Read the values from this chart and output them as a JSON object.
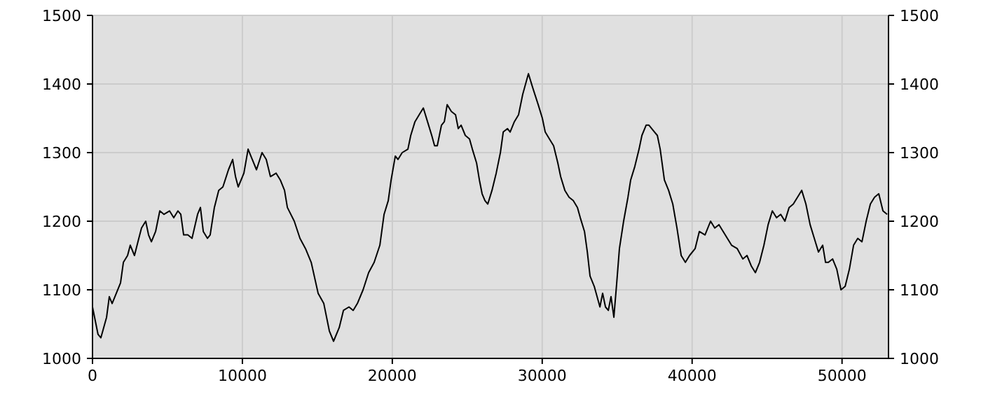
{
  "chart_data": {
    "type": "line",
    "xlim": [
      0,
      53100
    ],
    "xticks": [
      0,
      10000,
      20000,
      30000,
      40000,
      50000
    ],
    "ylim": [
      1000,
      1500
    ],
    "yticks": [
      1000,
      1100,
      1200,
      1300,
      1400,
      1500
    ],
    "y2lim": [
      1000,
      1500
    ],
    "y2ticks": [
      1000,
      1100,
      1200,
      1300,
      1400,
      1500
    ],
    "grid": true,
    "x": [
      0,
      370,
      560,
      940,
      1120,
      1310,
      1590,
      1870,
      2060,
      2340,
      2520,
      2800,
      3090,
      3270,
      3550,
      3740,
      3930,
      4210,
      4490,
      4770,
      5140,
      5420,
      5700,
      5890,
      6080,
      6360,
      6640,
      7010,
      7200,
      7390,
      7670,
      7850,
      8130,
      8420,
      8700,
      9070,
      9350,
      9540,
      9720,
      10100,
      10380,
      10660,
      10940,
      11310,
      11590,
      11870,
      12250,
      12530,
      12810,
      13000,
      13460,
      13840,
      14210,
      14590,
      15050,
      15430,
      15800,
      16080,
      16460,
      16740,
      17110,
      17390,
      17670,
      18050,
      18420,
      18790,
      19170,
      19450,
      19730,
      19920,
      20200,
      20380,
      20660,
      21040,
      21230,
      21510,
      21790,
      22070,
      22350,
      22630,
      22820,
      23000,
      23280,
      23470,
      23660,
      23940,
      24220,
      24400,
      24590,
      24870,
      25150,
      25340,
      25620,
      25810,
      25990,
      26180,
      26370,
      26650,
      26930,
      27210,
      27400,
      27680,
      27860,
      28140,
      28420,
      28700,
      28890,
      29080,
      29360,
      29730,
      30010,
      30200,
      30480,
      30760,
      31040,
      31230,
      31510,
      31790,
      32070,
      32350,
      32540,
      32820,
      33010,
      33190,
      33470,
      33660,
      33850,
      34030,
      34220,
      34410,
      34590,
      34780,
      34970,
      35150,
      35430,
      35720,
      35900,
      36180,
      36460,
      36650,
      36930,
      37120,
      37490,
      37680,
      37870,
      38150,
      38430,
      38710,
      38990,
      39270,
      39550,
      39830,
      40200,
      40480,
      40860,
      41230,
      41510,
      41790,
      42070,
      42350,
      42630,
      43010,
      43380,
      43660,
      43940,
      44220,
      44500,
      44790,
      45070,
      45350,
      45630,
      45910,
      46190,
      46470,
      46750,
      47030,
      47310,
      47590,
      47870,
      48150,
      48430,
      48710,
      48900,
      49090,
      49370,
      49650,
      49930,
      50210,
      50490,
      50770,
      51050,
      51330,
      51610,
      51890,
      52170,
      52450,
      52730,
      53010
    ],
    "series": [
      {
        "color": "#000000",
        "values": [
          1075,
          1035,
          1030,
          1060,
          1090,
          1080,
          1095,
          1110,
          1140,
          1150,
          1165,
          1150,
          1175,
          1190,
          1200,
          1180,
          1170,
          1185,
          1215,
          1210,
          1215,
          1205,
          1215,
          1210,
          1180,
          1180,
          1175,
          1210,
          1220,
          1185,
          1175,
          1180,
          1220,
          1245,
          1250,
          1275,
          1290,
          1265,
          1250,
          1270,
          1305,
          1290,
          1275,
          1300,
          1290,
          1265,
          1270,
          1260,
          1245,
          1220,
          1200,
          1175,
          1160,
          1140,
          1095,
          1080,
          1040,
          1025,
          1045,
          1070,
          1075,
          1070,
          1080,
          1100,
          1125,
          1140,
          1165,
          1210,
          1230,
          1260,
          1295,
          1290,
          1300,
          1305,
          1325,
          1345,
          1355,
          1365,
          1345,
          1325,
          1310,
          1310,
          1340,
          1345,
          1370,
          1360,
          1355,
          1335,
          1340,
          1325,
          1320,
          1305,
          1285,
          1260,
          1240,
          1230,
          1225,
          1245,
          1270,
          1300,
          1330,
          1335,
          1330,
          1345,
          1355,
          1385,
          1400,
          1415,
          1395,
          1370,
          1350,
          1330,
          1320,
          1310,
          1285,
          1265,
          1245,
          1235,
          1230,
          1220,
          1205,
          1185,
          1155,
          1120,
          1105,
          1090,
          1075,
          1095,
          1075,
          1070,
          1090,
          1060,
          1110,
          1160,
          1200,
          1235,
          1260,
          1280,
          1305,
          1325,
          1340,
          1340,
          1330,
          1325,
          1305,
          1260,
          1245,
          1225,
          1190,
          1150,
          1140,
          1150,
          1160,
          1185,
          1180,
          1200,
          1190,
          1195,
          1185,
          1175,
          1165,
          1160,
          1145,
          1150,
          1135,
          1125,
          1140,
          1165,
          1195,
          1215,
          1205,
          1210,
          1200,
          1220,
          1225,
          1235,
          1245,
          1225,
          1195,
          1175,
          1155,
          1165,
          1140,
          1140,
          1145,
          1130,
          1100,
          1105,
          1130,
          1165,
          1175,
          1170,
          1200,
          1225,
          1235,
          1240,
          1215,
          1210
        ]
      }
    ]
  }
}
